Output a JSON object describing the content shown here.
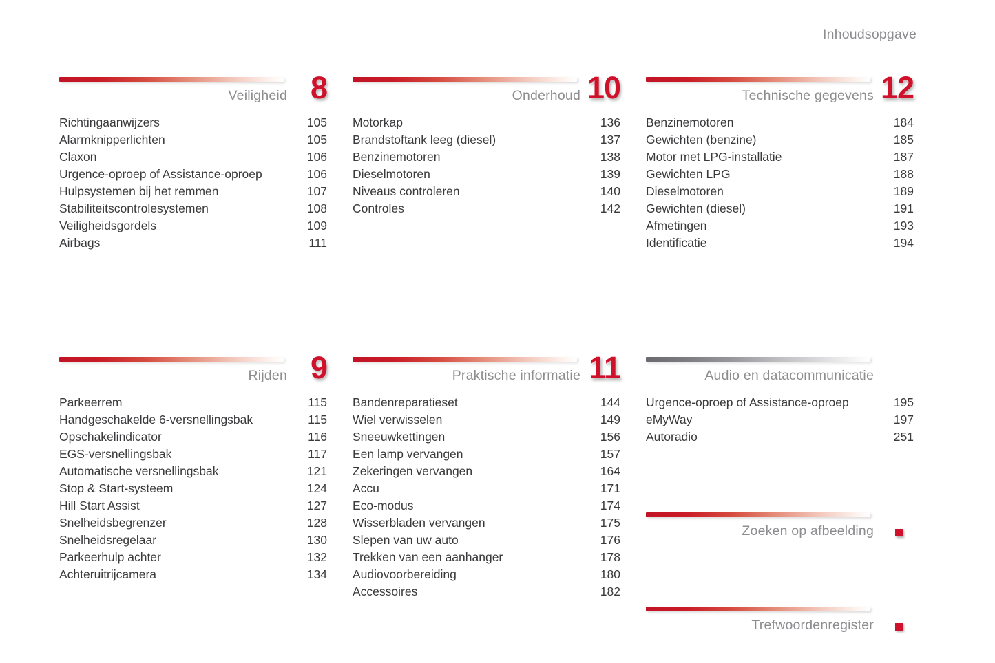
{
  "page": {
    "header": "Inhoudsopgave"
  },
  "colors": {
    "accent_red": "#d0112b",
    "bar_red": "#c11325",
    "bar_gray": "#6b6b6f",
    "title_gray": "#8d8d90",
    "item_text": "#3a3a3c"
  },
  "sections": [
    {
      "title": "Veiligheid",
      "number": "8",
      "bar": "red",
      "items": [
        {
          "label": "Richtingaanwijzers",
          "page": "105"
        },
        {
          "label": "Alarmknipperlichten",
          "page": "105"
        },
        {
          "label": "Claxon",
          "page": "106"
        },
        {
          "label": "Urgence-oproep of Assistance-oproep",
          "page": "106"
        },
        {
          "label": "Hulpsystemen bij het remmen",
          "page": "107"
        },
        {
          "label": "Stabiliteitscontrolesystemen",
          "page": "108"
        },
        {
          "label": "Veiligheidsgordels",
          "page": "109"
        },
        {
          "label": "Airbags",
          "page": "111"
        }
      ]
    },
    {
      "title": "Onderhoud",
      "number": "10",
      "bar": "red",
      "items": [
        {
          "label": "Motorkap",
          "page": "136"
        },
        {
          "label": "Brandstoftank leeg (diesel)",
          "page": "137"
        },
        {
          "label": "Benzinemotoren",
          "page": "138"
        },
        {
          "label": "Dieselmotoren",
          "page": "139"
        },
        {
          "label": "Niveaus controleren",
          "page": "140"
        },
        {
          "label": "Controles",
          "page": "142"
        }
      ]
    },
    {
      "title": "Technische gegevens",
      "number": "12",
      "bar": "red",
      "items": [
        {
          "label": "Benzinemotoren",
          "page": "184"
        },
        {
          "label": "Gewichten (benzine)",
          "page": "185"
        },
        {
          "label": "Motor met LPG-installatie",
          "page": "187"
        },
        {
          "label": "Gewichten LPG",
          "page": "188"
        },
        {
          "label": "Dieselmotoren",
          "page": "189"
        },
        {
          "label": "Gewichten (diesel)",
          "page": "191"
        },
        {
          "label": "Afmetingen",
          "page": "193"
        },
        {
          "label": "Identificatie",
          "page": "194"
        }
      ]
    },
    {
      "title": "Rijden",
      "number": "9",
      "bar": "red",
      "items": [
        {
          "label": "Parkeerrem",
          "page": "115"
        },
        {
          "label": "Handgeschakelde 6-versnellingsbak",
          "page": "115"
        },
        {
          "label": "Opschakelindicator",
          "page": "116"
        },
        {
          "label": "EGS-versnellingsbak",
          "page": "117"
        },
        {
          "label": "Automatische versnellingsbak",
          "page": "121"
        },
        {
          "label": "Stop & Start-systeem",
          "page": "124"
        },
        {
          "label": "Hill Start Assist",
          "page": "127"
        },
        {
          "label": "Snelheidsbegrenzer",
          "page": "128"
        },
        {
          "label": "Snelheidsregelaar",
          "page": "130"
        },
        {
          "label": "Parkeerhulp achter",
          "page": "132"
        },
        {
          "label": "Achteruitrijcamera",
          "page": "134"
        }
      ]
    },
    {
      "title": "Praktische informatie",
      "number": "11",
      "bar": "red",
      "items": [
        {
          "label": "Bandenreparatieset",
          "page": "144"
        },
        {
          "label": "Wiel verwisselen",
          "page": "149"
        },
        {
          "label": "Sneeuwkettingen",
          "page": "156"
        },
        {
          "label": "Een lamp vervangen",
          "page": "157"
        },
        {
          "label": "Zekeringen vervangen",
          "page": "164"
        },
        {
          "label": "Accu",
          "page": "171"
        },
        {
          "label": "Eco-modus",
          "page": "174"
        },
        {
          "label": "Wisserbladen vervangen",
          "page": "175"
        },
        {
          "label": "Slepen van uw auto",
          "page": "176"
        },
        {
          "label": "Trekken van een aanhanger",
          "page": "178"
        },
        {
          "label": "Audiovoorbereiding",
          "page": "180"
        },
        {
          "label": "Accessoires",
          "page": "182"
        }
      ]
    },
    {
      "title": "Audio en datacommunicatie",
      "number": "",
      "bar": "gray",
      "items": [
        {
          "label": "Urgence-oproep of Assistance-oproep",
          "page": "195"
        },
        {
          "label": "eMyWay",
          "page": "197"
        },
        {
          "label": "Autoradio",
          "page": "251"
        }
      ]
    }
  ],
  "footer_links": [
    {
      "title": "Zoeken op afbeelding",
      "marker": "red-square"
    },
    {
      "title": "Trefwoordenregister",
      "marker": "red-square"
    }
  ]
}
